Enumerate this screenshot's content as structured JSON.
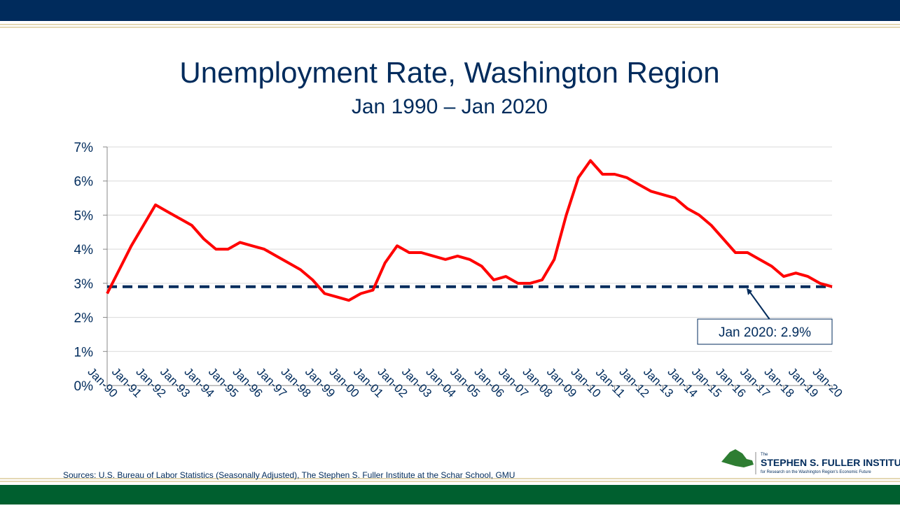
{
  "chart_data": {
    "type": "line",
    "title": "Unemployment Rate, Washington Region",
    "subtitle": "Jan 1990 – Jan 2020",
    "categories": [
      "Jan-90",
      null,
      "Jan-91",
      null,
      "Jan-92",
      null,
      "Jan-93",
      null,
      "Jan-94",
      null,
      "Jan-95",
      null,
      "Jan-96",
      null,
      "Jan-97",
      null,
      "Jan-98",
      null,
      "Jan-99",
      null,
      "Jan-00",
      null,
      "Jan-01",
      null,
      "Jan-02",
      null,
      "Jan-03",
      null,
      "Jan-04",
      null,
      "Jan-05",
      null,
      "Jan-06",
      null,
      "Jan-07",
      null,
      "Jan-08",
      null,
      "Jan-09",
      null,
      "Jan-10",
      null,
      "Jan-11",
      null,
      "Jan-12",
      null,
      "Jan-13",
      null,
      "Jan-14",
      null,
      "Jan-15",
      null,
      "Jan-16",
      null,
      "Jan-17",
      null,
      "Jan-18",
      null,
      "Jan-19",
      null,
      "Jan-20"
    ],
    "series": [
      {
        "name": "Unemployment Rate",
        "color": "#ff0000",
        "values": [
          2.7,
          3.4,
          4.1,
          4.7,
          5.3,
          5.1,
          4.9,
          4.7,
          4.3,
          4.0,
          4.0,
          4.2,
          4.1,
          4.0,
          3.8,
          3.6,
          3.4,
          3.1,
          2.7,
          2.6,
          2.5,
          2.7,
          2.8,
          3.6,
          4.1,
          3.9,
          3.9,
          3.8,
          3.7,
          3.8,
          3.7,
          3.5,
          3.1,
          3.2,
          3.0,
          3.0,
          3.1,
          3.7,
          5.0,
          6.1,
          6.6,
          6.2,
          6.2,
          6.1,
          5.9,
          5.7,
          5.6,
          5.5,
          5.2,
          5.0,
          4.7,
          4.3,
          3.9,
          3.9,
          3.7,
          3.5,
          3.2,
          3.3,
          3.2,
          3.0,
          2.9
        ]
      }
    ],
    "reference_line": {
      "value": 2.9,
      "color": "#002b5c"
    },
    "annotation": "Jan 2020: 2.9%",
    "ylim": [
      0,
      7
    ],
    "yticks": [
      {
        "value": 0,
        "label": "0%"
      },
      {
        "value": 1,
        "label": "1%"
      },
      {
        "value": 2,
        "label": "2%"
      },
      {
        "value": 3,
        "label": "3%"
      },
      {
        "value": 4,
        "label": "4%"
      },
      {
        "value": 5,
        "label": "5%"
      },
      {
        "value": 6,
        "label": "6%"
      },
      {
        "value": 7,
        "label": "7%"
      }
    ],
    "grid": true
  },
  "footer": {
    "source": "Sources: U.S. Bureau of Labor Statistics (Seasonally Adjusted), The Stephen S. Fuller Institute at the Schar School, GMU",
    "logo_small": "The",
    "logo_name": "STEPHEN S. FULLER INSTITUTE",
    "logo_tagline": "for Research on the Washington Region's Economic Future"
  }
}
